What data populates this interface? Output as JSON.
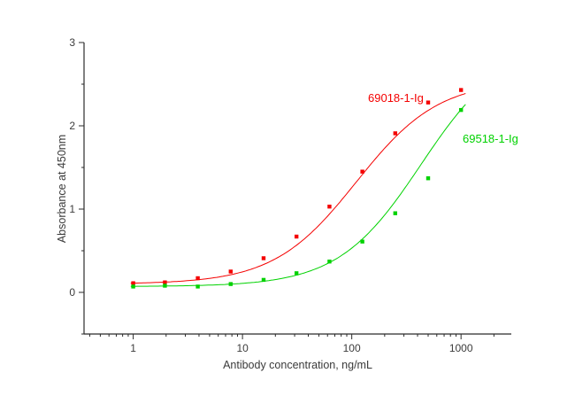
{
  "chart_data": {
    "type": "scatter",
    "title": "",
    "xlabel": "Antibody concentration, ng/mL",
    "ylabel": "Absorbance at 450nm",
    "x_scale": "log10",
    "xlim_log": [
      -0.45,
      3.46
    ],
    "ylim": [
      -0.5,
      3
    ],
    "x_ticks": [
      1,
      10,
      100,
      1000
    ],
    "x_tick_labels": [
      "1",
      "10",
      "100",
      "1000"
    ],
    "y_ticks": [
      0,
      1,
      2,
      3
    ],
    "y_tick_labels": [
      "0",
      "1",
      "2",
      "3"
    ],
    "y_minor_step": 0.5,
    "grid": false,
    "legend_position": "inline-curve-labels",
    "axis_color": "#2b2b2b",
    "series": [
      {
        "name": "69018-1-Ig",
        "color": "#f40000",
        "marker": "square",
        "x": [
          1,
          1.95,
          3.9,
          7.8,
          15.6,
          31.2,
          62.5,
          125,
          250,
          500,
          1000
        ],
        "y": [
          0.11,
          0.12,
          0.17,
          0.25,
          0.41,
          0.67,
          1.03,
          1.45,
          1.91,
          2.28,
          2.43
        ],
        "fit_4pl": {
          "bottom": 0.1,
          "top": 2.55,
          "ec50": 110,
          "hill": 1.15
        },
        "fit_x_range": [
          0.95,
          1100
        ],
        "label_pos": {
          "x": 135,
          "y": 2.38
        }
      },
      {
        "name": "69518-1-Ig",
        "color": "#00d200",
        "marker": "square",
        "x": [
          1,
          1.95,
          3.9,
          7.8,
          15.6,
          31.2,
          62.5,
          125,
          250,
          500,
          1000
        ],
        "y": [
          0.07,
          0.08,
          0.07,
          0.1,
          0.15,
          0.23,
          0.37,
          0.61,
          0.95,
          1.37,
          2.19
        ],
        "fit_4pl": {
          "bottom": 0.07,
          "top": 3.0,
          "ec50": 430,
          "hill": 1.15
        },
        "fit_x_range": [
          0.95,
          1100
        ],
        "label_pos": {
          "x": 1030,
          "y": 1.86
        }
      }
    ]
  }
}
